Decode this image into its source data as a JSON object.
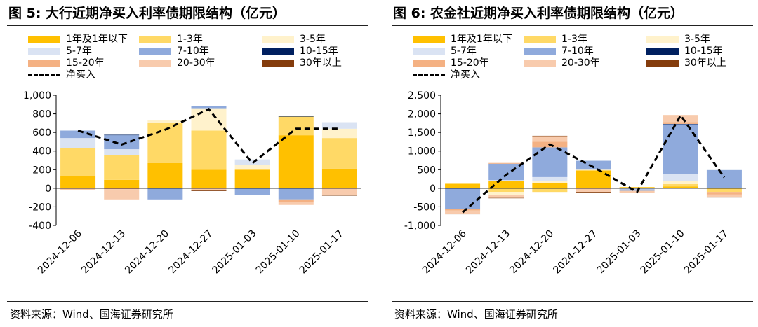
{
  "source_text": "资料来源：Wind、国海证券研究所",
  "legend_order": [
    "1年及1年以下",
    "1-3年",
    "3-5年",
    "5-7年",
    "7-10年",
    "10-15年",
    "15-20年",
    "20-30年",
    "30年以上",
    "净买入"
  ],
  "colors": {
    "1年及1年以下": "#FFC000",
    "1-3年": "#FFD966",
    "3-5年": "#FFF2CC",
    "5-7年": "#DAE3F3",
    "7-10年": "#8FAADC",
    "10-15年": "#002060",
    "15-20年": "#F4B183",
    "20-30年": "#F8CBAD",
    "30年以上": "#843C0C",
    "净买入": "#000000"
  },
  "chart_data": [
    {
      "type": "bar",
      "title": "图 5:  大行近期净买入利率债期限结构（亿元）",
      "categories": [
        "2024-12-06",
        "2024-12-13",
        "2024-12-20",
        "2024-12-27",
        "2025-01-03",
        "2025-01-10",
        "2025-01-17"
      ],
      "ylim": [
        -400,
        1000
      ],
      "yticks": [
        -400,
        -200,
        0,
        200,
        400,
        600,
        800,
        1000
      ],
      "ytick_labels": [
        "-400",
        "-200",
        "0",
        "200",
        "400",
        "600",
        "800",
        "1,000"
      ],
      "series": [
        {
          "name": "1年及1年以下",
          "values": [
            130,
            90,
            270,
            200,
            200,
            570,
            210
          ]
        },
        {
          "name": "1-3年",
          "values": [
            300,
            270,
            430,
            420,
            0,
            200,
            330
          ]
        },
        {
          "name": "3-5年",
          "values": [
            0,
            0,
            30,
            240,
            50,
            0,
            100
          ]
        },
        {
          "name": "5-7年",
          "values": [
            110,
            60,
            0,
            0,
            60,
            0,
            70
          ]
        },
        {
          "name": "7-10年",
          "values": [
            80,
            150,
            -120,
            20,
            -70,
            -120,
            0
          ]
        },
        {
          "name": "10-15年",
          "values": [
            0,
            5,
            0,
            5,
            0,
            10,
            0
          ]
        },
        {
          "name": "15-20年",
          "values": [
            0,
            -10,
            0,
            0,
            0,
            -30,
            0
          ]
        },
        {
          "name": "20-30年",
          "values": [
            -20,
            -110,
            0,
            -20,
            0,
            -30,
            -70
          ]
        },
        {
          "name": "30年以上",
          "values": [
            0,
            0,
            0,
            -10,
            0,
            0,
            -10
          ]
        },
        {
          "name": "净买入",
          "type": "line",
          "values": [
            620,
            470,
            630,
            850,
            270,
            640,
            640
          ]
        }
      ]
    },
    {
      "type": "bar",
      "title": "图 6:  农金社近期净买入利率债期限结构（亿元）",
      "categories": [
        "2024-12-06",
        "2024-12-13",
        "2024-12-20",
        "2024-12-27",
        "2025-01-03",
        "2025-01-10",
        "2025-01-17"
      ],
      "ylim": [
        -1000,
        2500
      ],
      "yticks": [
        -1000,
        -500,
        0,
        500,
        1000,
        1500,
        2000,
        2500
      ],
      "ytick_labels": [
        "-1,000",
        "-500",
        "0",
        "500",
        "1,000",
        "1,500",
        "2,000",
        "2,500"
      ],
      "series": [
        {
          "name": "1年及1年以下",
          "values": [
            120,
            200,
            150,
            480,
            30,
            50,
            10
          ]
        },
        {
          "name": "1-3年",
          "values": [
            0,
            -100,
            -100,
            0,
            0,
            60,
            -100
          ]
        },
        {
          "name": "3-5年",
          "values": [
            0,
            -80,
            50,
            20,
            0,
            80,
            0
          ]
        },
        {
          "name": "5-7年",
          "values": [
            0,
            20,
            100,
            0,
            -30,
            200,
            0
          ]
        },
        {
          "name": "7-10年",
          "values": [
            -550,
            440,
            800,
            240,
            -40,
            1330,
            480
          ]
        },
        {
          "name": "10-15年",
          "values": [
            0,
            0,
            0,
            0,
            0,
            10,
            0
          ]
        },
        {
          "name": "15-20年",
          "values": [
            -50,
            20,
            150,
            0,
            0,
            50,
            -70
          ]
        },
        {
          "name": "20-30年",
          "values": [
            -80,
            -80,
            150,
            -100,
            -50,
            190,
            -60
          ]
        },
        {
          "name": "30年以上",
          "values": [
            -20,
            -10,
            10,
            -20,
            0,
            0,
            -20
          ]
        },
        {
          "name": "净买入",
          "type": "line",
          "values": [
            -650,
            360,
            1180,
            570,
            -100,
            1960,
            290
          ]
        }
      ]
    }
  ]
}
